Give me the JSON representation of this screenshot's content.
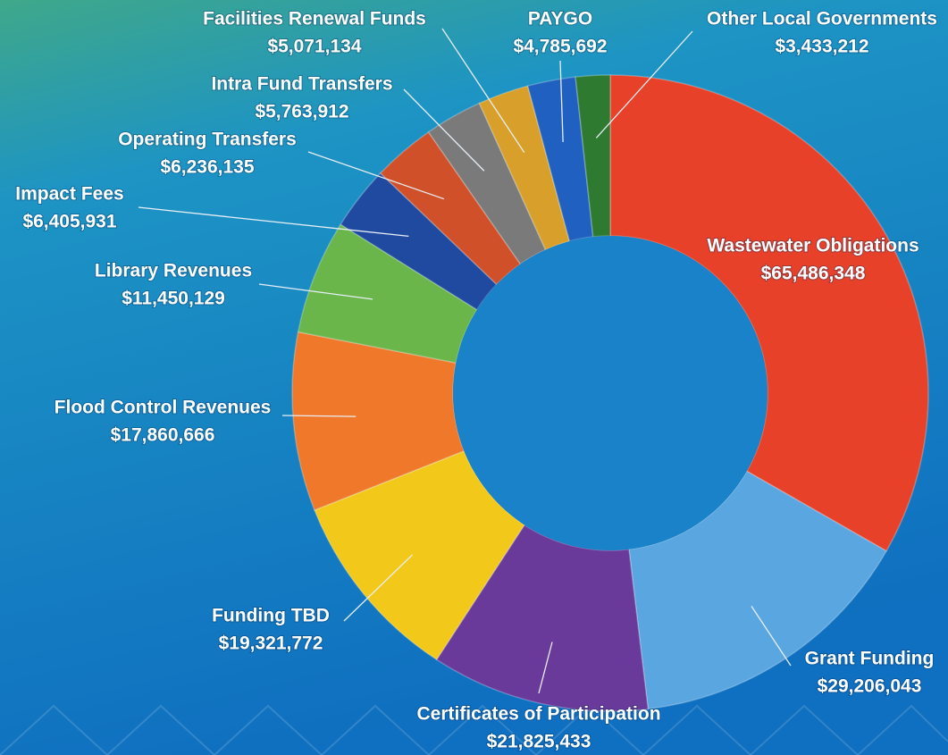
{
  "chart_data": {
    "type": "donut",
    "categories": [
      "Wastewater Obligations",
      "Grant Funding",
      "Certificates of Participation",
      "Funding TBD",
      "Flood Control Revenues",
      "Library Revenues",
      "Impact Fees",
      "Operating Transfers",
      "Intra Fund Transfers",
      "Facilities Renewal Funds",
      "PAYGO",
      "Other Local Governments"
    ],
    "values": [
      65486348,
      29206043,
      21825433,
      19321772,
      17860666,
      11450129,
      6405931,
      6236135,
      5763912,
      5071134,
      4785692,
      3433212
    ],
    "value_labels": [
      "$65,486,348",
      "$29,206,043",
      "$21,825,433",
      "$19,321,772",
      "$17,860,666",
      "$11,450,129",
      "$6,405,931",
      "$6,236,135",
      "$5,763,912",
      "$5,071,134",
      "$4,785,692",
      "$3,433,212"
    ],
    "colors": [
      "#e8412a",
      "#5aa6e0",
      "#6a3a9a",
      "#f2c81a",
      "#f0782a",
      "#6ab64a",
      "#1f4aa0",
      "#d0502a",
      "#7a7a7a",
      "#d8a02a",
      "#2060c0",
      "#2e7a30"
    ]
  }
}
